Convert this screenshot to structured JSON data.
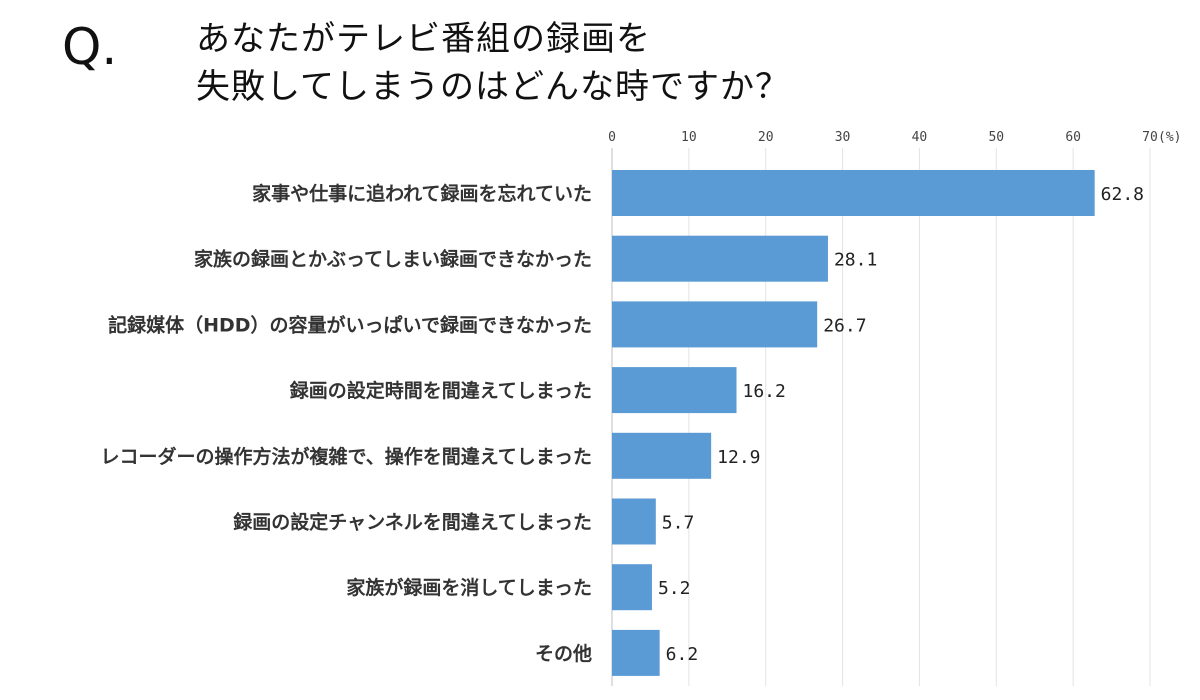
{
  "question_mark": "Q.",
  "title_lines": [
    "あなたがテレビ番組の録画を",
    "失敗してしまうのはどんな時ですか？"
  ],
  "chart_data": {
    "type": "bar",
    "orientation": "horizontal",
    "unit_label": "(%)",
    "xlim": [
      0,
      70
    ],
    "ticks": [
      0,
      10,
      20,
      30,
      40,
      50,
      60,
      70
    ],
    "tick_labels": [
      "0",
      "10",
      "20",
      "30",
      "40",
      "50",
      "60",
      "70"
    ],
    "grid": true,
    "bar_color": "#5b9bd5",
    "categories": [
      "家事や仕事に追われて録画を忘れていた",
      "家族の録画とかぶってしまい録画できなかった",
      "記録媒体（HDD）の容量がいっぱいで録画できなかった",
      "録画の設定時間を間違えてしまった",
      "レコーダーの操作方法が複雑で、操作を間違えてしまった",
      "録画の設定チャンネルを間違えてしまった",
      "家族が録画を消してしまった",
      "その他"
    ],
    "values": [
      62.8,
      28.1,
      26.7,
      16.2,
      12.9,
      5.7,
      5.2,
      6.2
    ],
    "value_labels": [
      "62.8",
      "28.1",
      "26.7",
      "16.2",
      "12.9",
      "5.7",
      "5.2",
      "6.2"
    ]
  }
}
